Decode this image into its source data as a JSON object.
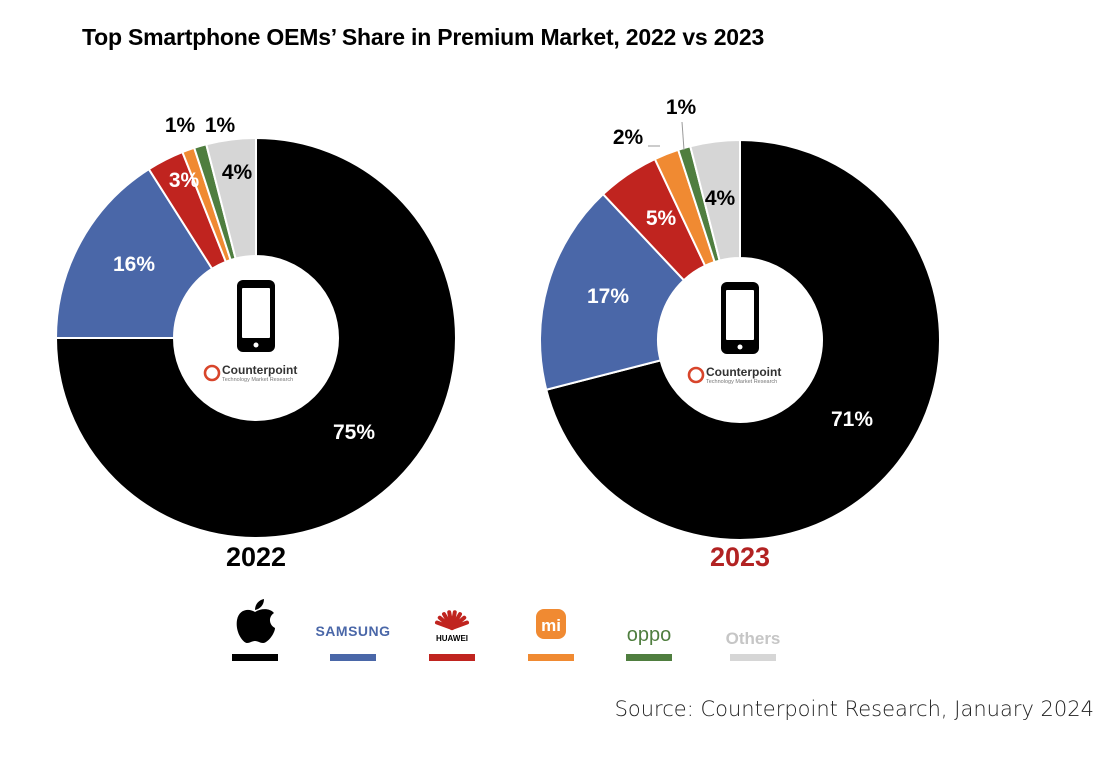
{
  "title": "Top Smartphone OEMs’ Share in Premium Market, 2022 vs 2023",
  "source": "Source: Counterpoint Research, January 2024",
  "logo": {
    "name": "Counterpoint",
    "tagline": "Technology Market Research"
  },
  "colors": {
    "Apple": "#000000",
    "Samsung": "#4a67a8",
    "Huawei": "#c0241f",
    "Xiaomi": "#f08a32",
    "OPPO": "#4f7e3f",
    "Others": "#d6d6d6",
    "year2023": "#b22222"
  },
  "legend": [
    {
      "brand": "Apple",
      "label": "",
      "icon": "apple-logo-icon"
    },
    {
      "brand": "Samsung",
      "label": "SAMSUNG"
    },
    {
      "brand": "Huawei",
      "label": "HUAWEI",
      "icon": "huawei-logo-icon"
    },
    {
      "brand": "Xiaomi",
      "label": "mi",
      "icon": "xiaomi-logo-icon"
    },
    {
      "brand": "OPPO",
      "label": "oppo"
    },
    {
      "brand": "Others",
      "label": "Others"
    }
  ],
  "chart_data": [
    {
      "type": "pie",
      "title": "2022",
      "categories": [
        "Apple",
        "Samsung",
        "Huawei",
        "Xiaomi",
        "OPPO",
        "Others"
      ],
      "values": [
        75,
        16,
        3,
        1,
        1,
        4
      ],
      "labels": [
        "75%",
        "16%",
        "3%",
        "1%",
        "1%",
        "4%"
      ]
    },
    {
      "type": "pie",
      "title": "2023",
      "categories": [
        "Apple",
        "Samsung",
        "Huawei",
        "Xiaomi",
        "OPPO",
        "Others"
      ],
      "values": [
        71,
        17,
        5,
        2,
        1,
        4
      ],
      "labels": [
        "71%",
        "17%",
        "5%",
        "2%",
        "1%",
        "4%"
      ]
    }
  ]
}
